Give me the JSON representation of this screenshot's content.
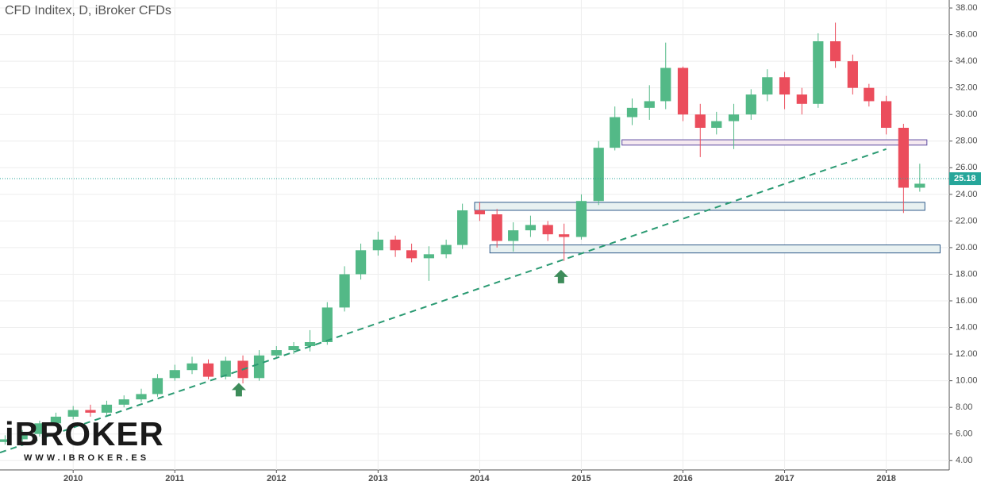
{
  "chart_data": {
    "type": "candlestick",
    "title": "CFD Inditex, D, iBroker CFDs",
    "logo": "iBROKER",
    "logo_url": "WWW.IBROKER.ES",
    "x": [
      2009.33,
      2009.5,
      2009.67,
      2009.83,
      2010,
      2010.17,
      2010.33,
      2010.5,
      2010.67,
      2010.83,
      2011,
      2011.17,
      2011.33,
      2011.5,
      2011.67,
      2011.83,
      2012,
      2012.17,
      2012.33,
      2012.5,
      2012.67,
      2012.83,
      2013,
      2013.17,
      2013.33,
      2013.5,
      2013.67,
      2013.83,
      2014,
      2014.17,
      2014.33,
      2014.5,
      2014.67,
      2014.83,
      2015,
      2015.17,
      2015.33,
      2015.5,
      2015.67,
      2015.83,
      2016,
      2016.17,
      2016.33,
      2016.5,
      2016.67,
      2016.83,
      2017,
      2017.17,
      2017.33,
      2017.5,
      2017.67,
      2017.83,
      2018,
      2018.17,
      2018.33
    ],
    "open": [
      5.4,
      5.6,
      6.0,
      6.8,
      7.3,
      7.8,
      7.6,
      8.2,
      8.6,
      9.0,
      10.2,
      10.8,
      11.3,
      10.3,
      11.5,
      10.2,
      11.9,
      12.3,
      12.6,
      12.9,
      15.5,
      18.0,
      19.8,
      20.6,
      19.8,
      19.2,
      19.5,
      20.2,
      22.8,
      22.5,
      20.5,
      21.3,
      21.7,
      21.0,
      20.8,
      23.5,
      27.5,
      29.8,
      30.5,
      31.0,
      33.5,
      30.0,
      29.0,
      29.5,
      30.0,
      31.5,
      32.8,
      31.5,
      30.8,
      35.5,
      34.0,
      32.0,
      31.0,
      29.0,
      24.5
    ],
    "high": [
      5.9,
      6.3,
      7.0,
      7.6,
      8.1,
      8.2,
      8.5,
      8.9,
      9.4,
      10.5,
      11.2,
      11.8,
      11.6,
      11.8,
      11.9,
      12.3,
      12.6,
      12.9,
      13.8,
      15.9,
      18.6,
      20.3,
      21.2,
      20.9,
      20.3,
      20.1,
      20.6,
      23.3,
      23.4,
      22.9,
      21.9,
      22.4,
      22.0,
      21.8,
      24.0,
      28.0,
      30.6,
      31.2,
      32.2,
      35.4,
      33.6,
      30.8,
      30.2,
      30.8,
      31.9,
      33.4,
      33.2,
      32.0,
      36.1,
      36.9,
      34.5,
      32.3,
      31.4,
      29.3,
      26.3
    ],
    "low": [
      5.2,
      5.4,
      5.8,
      6.6,
      7.1,
      7.3,
      7.4,
      8.0,
      8.4,
      8.8,
      10.0,
      10.5,
      10.1,
      10.1,
      9.8,
      10.0,
      11.7,
      12.0,
      12.2,
      12.7,
      15.2,
      17.6,
      19.4,
      19.3,
      18.9,
      17.5,
      19.2,
      19.9,
      22.0,
      20.0,
      19.7,
      20.8,
      20.5,
      19.0,
      20.6,
      23.2,
      27.3,
      29.2,
      29.6,
      30.4,
      29.5,
      26.8,
      28.5,
      27.4,
      29.6,
      31.0,
      30.4,
      30.0,
      30.5,
      33.5,
      31.5,
      30.6,
      28.5,
      22.6,
      24.2
    ],
    "close": [
      5.6,
      6.0,
      6.8,
      7.3,
      7.8,
      7.6,
      8.2,
      8.6,
      9.0,
      10.2,
      10.8,
      11.3,
      10.3,
      11.5,
      10.2,
      11.9,
      12.3,
      12.6,
      12.9,
      15.5,
      18.0,
      19.8,
      20.6,
      19.8,
      19.2,
      19.5,
      20.2,
      22.8,
      22.5,
      20.5,
      21.3,
      21.7,
      21.0,
      20.8,
      23.5,
      27.5,
      29.8,
      30.5,
      31.0,
      33.5,
      30.0,
      29.0,
      29.5,
      30.0,
      31.5,
      32.8,
      31.5,
      30.8,
      35.5,
      34.0,
      32.0,
      31.0,
      29.0,
      24.5,
      24.8
    ],
    "up_color": "#53b987",
    "down_color": "#eb4d5c",
    "last_price": 25.18,
    "last_price_color": "#26a69a",
    "zones": [
      {
        "x": [
          2015.4,
          2018.4
        ],
        "y": [
          27.7,
          28.1
        ],
        "color": "#5b4aa0",
        "fill": "#f5e9f0"
      },
      {
        "x": [
          2013.95,
          2018.38
        ],
        "y": [
          22.8,
          23.4
        ],
        "color": "#2e5a8a",
        "fill": "#e8f1f1"
      },
      {
        "x": [
          2014.1,
          2018.53
        ],
        "y": [
          19.6,
          20.2
        ],
        "color": "#2e5a8a",
        "fill": "#e8f1f1"
      }
    ],
    "trendline": {
      "x": [
        2009.28,
        2018.0
      ],
      "y": [
        4.6,
        27.4
      ],
      "color": "#2a9a72"
    },
    "arrows": [
      {
        "x": 2011.63,
        "y": 9.3
      },
      {
        "x": 2014.8,
        "y": 17.8
      }
    ],
    "arrow_color": "#3d8c5a",
    "xlim": [
      2009.28,
      2018.62
    ],
    "xticks": [
      2010,
      2011,
      2012,
      2013,
      2014,
      2015,
      2016,
      2017,
      2018
    ],
    "ylim": [
      3.3,
      38.6
    ],
    "yticks": [
      {
        "value": 4,
        "label": "4.00"
      },
      {
        "value": 6,
        "label": "6.00"
      },
      {
        "value": 8,
        "label": "8.00"
      },
      {
        "value": 10,
        "label": "10.00"
      },
      {
        "value": 12,
        "label": "12.00"
      },
      {
        "value": 14,
        "label": "14.00"
      },
      {
        "value": 16,
        "label": "16.00"
      },
      {
        "value": 18,
        "label": "18.00"
      },
      {
        "value": 20,
        "label": "20.00"
      },
      {
        "value": 22,
        "label": "22.00"
      },
      {
        "value": 24,
        "label": "24.00"
      },
      {
        "value": 26,
        "label": "26.00"
      },
      {
        "value": 28,
        "label": "28.00"
      },
      {
        "value": 30,
        "label": "30.00"
      },
      {
        "value": 32,
        "label": "32.00"
      },
      {
        "value": 34,
        "label": "34.00"
      },
      {
        "value": 36,
        "label": "36.00"
      },
      {
        "value": 38,
        "label": "38.00"
      }
    ],
    "grid": true
  }
}
